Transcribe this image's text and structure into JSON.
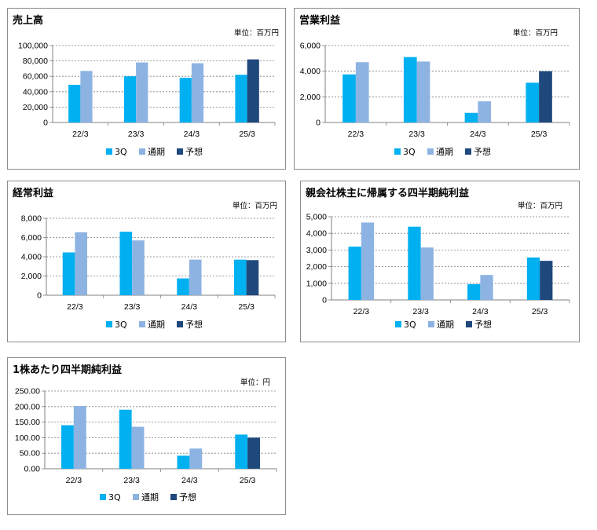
{
  "colors": {
    "q3": "#00b0f0",
    "full_year": "#8db3e2",
    "forecast": "#1f497d",
    "grid": "#7f7f7f"
  },
  "legend": [
    "3Q",
    "通期",
    "予想"
  ],
  "chart_data": [
    {
      "type": "bar",
      "title": "売上高",
      "unit": "単位：百万円",
      "categories": [
        "22/3",
        "23/3",
        "24/3",
        "25/3"
      ],
      "ylim": [
        0,
        100000
      ],
      "yticks": [
        "0",
        "20,000",
        "40,000",
        "60,000",
        "80,000",
        "100,000"
      ],
      "grid": true,
      "legend_position": "bottom",
      "series": [
        {
          "name": "3Q",
          "values": [
            49000,
            60000,
            58000,
            62000
          ]
        },
        {
          "name": "通期",
          "values": [
            67000,
            78000,
            77000,
            null
          ]
        },
        {
          "name": "予想",
          "values": [
            null,
            null,
            null,
            82000
          ]
        }
      ]
    },
    {
      "type": "bar",
      "title": "営業利益",
      "unit": "単位：百万円",
      "categories": [
        "22/3",
        "23/3",
        "24/3",
        "25/3"
      ],
      "ylim": [
        0,
        6000
      ],
      "yticks": [
        "0",
        "2,000",
        "4,000",
        "6,000"
      ],
      "grid": true,
      "legend_position": "bottom",
      "series": [
        {
          "name": "3Q",
          "values": [
            3750,
            5100,
            750,
            3100
          ]
        },
        {
          "name": "通期",
          "values": [
            4700,
            4750,
            1650,
            null
          ]
        },
        {
          "name": "予想",
          "values": [
            null,
            null,
            null,
            4000
          ]
        }
      ]
    },
    {
      "type": "bar",
      "title": "経常利益",
      "unit": "単位：百万円",
      "categories": [
        "22/3",
        "23/3",
        "24/3",
        "25/3"
      ],
      "ylim": [
        0,
        8000
      ],
      "yticks": [
        "0",
        "2,000",
        "4,000",
        "6,000",
        "8,000"
      ],
      "grid": true,
      "legend_position": "bottom",
      "series": [
        {
          "name": "3Q",
          "values": [
            4450,
            6600,
            1750,
            3700
          ]
        },
        {
          "name": "通期",
          "values": [
            6550,
            5700,
            3700,
            null
          ]
        },
        {
          "name": "予想",
          "values": [
            null,
            null,
            null,
            3650
          ]
        }
      ]
    },
    {
      "type": "bar",
      "title": "親会社株主に帰属する四半期純利益",
      "unit": "単位：百万円",
      "categories": [
        "22/3",
        "23/3",
        "24/3",
        "25/3"
      ],
      "ylim": [
        0,
        5000
      ],
      "yticks": [
        "0",
        "1,000",
        "2,000",
        "3,000",
        "4,000",
        "5,000"
      ],
      "grid": true,
      "legend_position": "bottom",
      "series": [
        {
          "name": "3Q",
          "values": [
            3200,
            4400,
            950,
            2550
          ]
        },
        {
          "name": "通期",
          "values": [
            4650,
            3150,
            1500,
            null
          ]
        },
        {
          "name": "予想",
          "values": [
            null,
            null,
            null,
            2350
          ]
        }
      ]
    },
    {
      "type": "bar",
      "title": "1株あたり四半期純利益",
      "unit": "単位：円",
      "categories": [
        "22/3",
        "23/3",
        "24/3",
        "25/3"
      ],
      "ylim": [
        0,
        250
      ],
      "yticks": [
        "0.00",
        "50.00",
        "100.00",
        "150.00",
        "200.00",
        "250.00"
      ],
      "grid": true,
      "legend_position": "bottom",
      "series": [
        {
          "name": "3Q",
          "values": [
            140,
            190,
            42,
            110
          ]
        },
        {
          "name": "通期",
          "values": [
            202,
            135,
            65,
            null
          ]
        },
        {
          "name": "予想",
          "values": [
            null,
            null,
            null,
            100
          ]
        }
      ]
    }
  ]
}
